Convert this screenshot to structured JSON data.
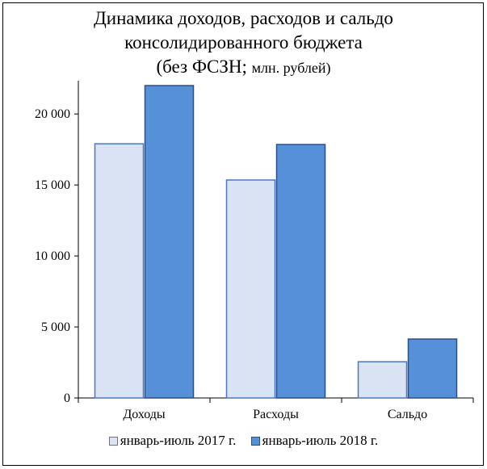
{
  "chart_data": {
    "type": "bar",
    "title": "Динамика доходов, расходов и сальдо консолидированного бюджета",
    "title_lines": [
      "Динамика доходов, расходов и сальдо",
      "консолидированного бюджета"
    ],
    "subtitle_prefix": "(без ФСЗН; ",
    "subtitle_unit": "млн. рублей)",
    "categories": [
      "Доходы",
      "Расходы",
      "Сальдо"
    ],
    "series": [
      {
        "name": "январь-июль 2017 г.",
        "values": [
          17900,
          15350,
          2550
        ],
        "color": "#dae3f3",
        "stroke": "#4a78c2"
      },
      {
        "name": "январь-июль 2018 г.",
        "values": [
          22000,
          17850,
          4150
        ],
        "color": "#5590d8",
        "stroke": "#2a4f8a"
      }
    ],
    "ylim": [
      0,
      22000
    ],
    "yticks": [
      0,
      5000,
      10000,
      15000,
      20000
    ],
    "ytick_labels": [
      "0",
      "5 000",
      "10 000",
      "15 000",
      "20 000"
    ],
    "xlabel": "",
    "ylabel": "",
    "grid": false,
    "legend_position": "bottom"
  }
}
